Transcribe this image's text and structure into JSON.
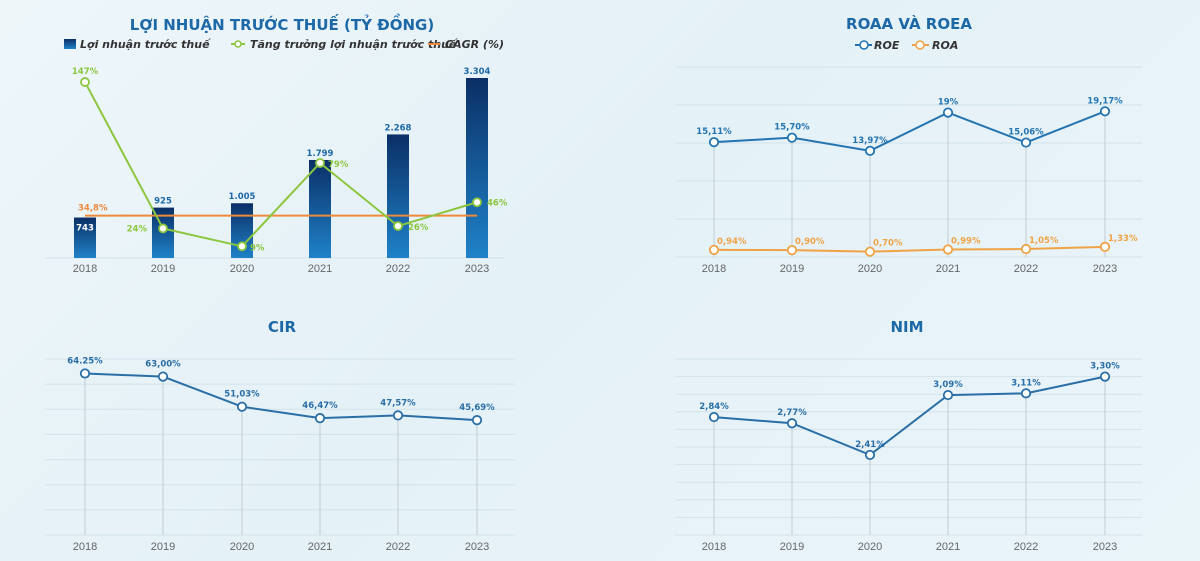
{
  "colors": {
    "title": "#1d68a6",
    "bar_top": "#0b2f66",
    "bar_bottom": "#1f82c8",
    "growth": "#8cc63f",
    "cagr": "#ee8a3c",
    "roe": "#2474b0",
    "roa": "#f0a346",
    "line": "#2a6ea6"
  },
  "chart_data": [
    {
      "type": "bar",
      "title": "LỢI NHUẬN TRƯỚC THUẾ (TỶ ĐỒNG)",
      "categories": [
        "2018",
        "2019",
        "2020",
        "2021",
        "2022",
        "2023"
      ],
      "legend": [
        "Lợi nhuận trước thuế",
        "Tăng trưởng lợi nhuận trước thuế",
        "CAGR (%)"
      ],
      "legend_placement": "top",
      "grid": false,
      "series": [
        {
          "name": "Lợi nhuận trước thuế",
          "type": "bar",
          "values": [
            743,
            925,
            1005,
            1799,
            2268,
            3304
          ],
          "labels": [
            "743",
            "925",
            "1.005",
            "1.799",
            "2.268",
            "3.304"
          ]
        },
        {
          "name": "Tăng trưởng lợi nhuận trước thuế",
          "type": "line",
          "values": [
            147,
            24,
            9,
            79,
            26,
            46
          ],
          "labels": [
            "147%",
            "24%",
            "9%",
            "79%",
            "26%",
            "46%"
          ]
        },
        {
          "name": "CAGR (%)",
          "type": "line",
          "values": [
            34.8,
            34.8,
            34.8,
            34.8,
            34.8,
            34.8
          ],
          "labels": [
            "34,8%"
          ]
        }
      ]
    },
    {
      "type": "line",
      "title": "ROAA VÀ ROEA",
      "categories": [
        "2018",
        "2019",
        "2020",
        "2021",
        "2022",
        "2023"
      ],
      "legend": [
        "ROE",
        "ROA"
      ],
      "legend_placement": "top",
      "grid": true,
      "ylim": [
        0,
        25
      ],
      "series": [
        {
          "name": "ROE",
          "values": [
            15.11,
            15.7,
            13.97,
            19,
            15.06,
            19.17
          ],
          "labels": [
            "15,11%",
            "15,70%",
            "13,97%",
            "19%",
            "15,06%",
            "19,17%"
          ]
        },
        {
          "name": "ROA",
          "values": [
            0.94,
            0.9,
            0.7,
            0.99,
            1.05,
            1.33
          ],
          "labels": [
            "0,94%",
            "0,90%",
            "0,70%",
            "0,99%",
            "1,05%",
            "1,33%"
          ]
        }
      ]
    },
    {
      "type": "line",
      "title": "CIR",
      "categories": [
        "2018",
        "2019",
        "2020",
        "2021",
        "2022",
        "2023"
      ],
      "grid": true,
      "ylim": [
        0,
        70
      ],
      "series": [
        {
          "values": [
            64.25,
            63.0,
            51.03,
            46.47,
            47.57,
            45.69
          ],
          "labels": [
            "64.25%",
            "63,00%",
            "51,03%",
            "46,47%",
            "47,57%",
            "45,69%"
          ]
        }
      ]
    },
    {
      "type": "line",
      "title": "NIM",
      "categories": [
        "2018",
        "2019",
        "2020",
        "2021",
        "2022",
        "2023"
      ],
      "grid": true,
      "ylim": [
        1.5,
        3.5
      ],
      "series": [
        {
          "values": [
            2.84,
            2.77,
            2.41,
            3.09,
            3.11,
            3.3
          ],
          "labels": [
            "2,84%",
            "2,77%",
            "2,41%",
            "3,09%",
            "3,11%",
            "3,30%"
          ]
        }
      ]
    }
  ]
}
